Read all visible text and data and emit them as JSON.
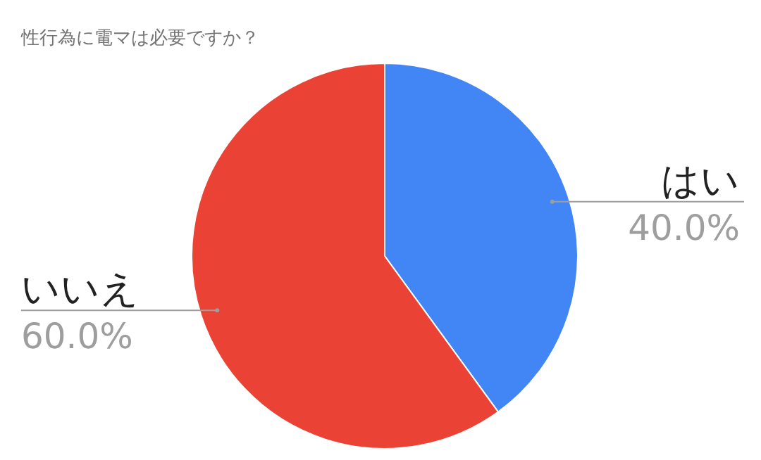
{
  "chart_data": {
    "type": "pie",
    "title": "性行為に電マは必要ですか？",
    "categories": [
      "はい",
      "いいえ"
    ],
    "values": [
      40.0,
      60.0
    ],
    "colors": [
      "#4285f4",
      "#ea4335"
    ],
    "value_labels": [
      "40.0%",
      "60.0%"
    ]
  }
}
